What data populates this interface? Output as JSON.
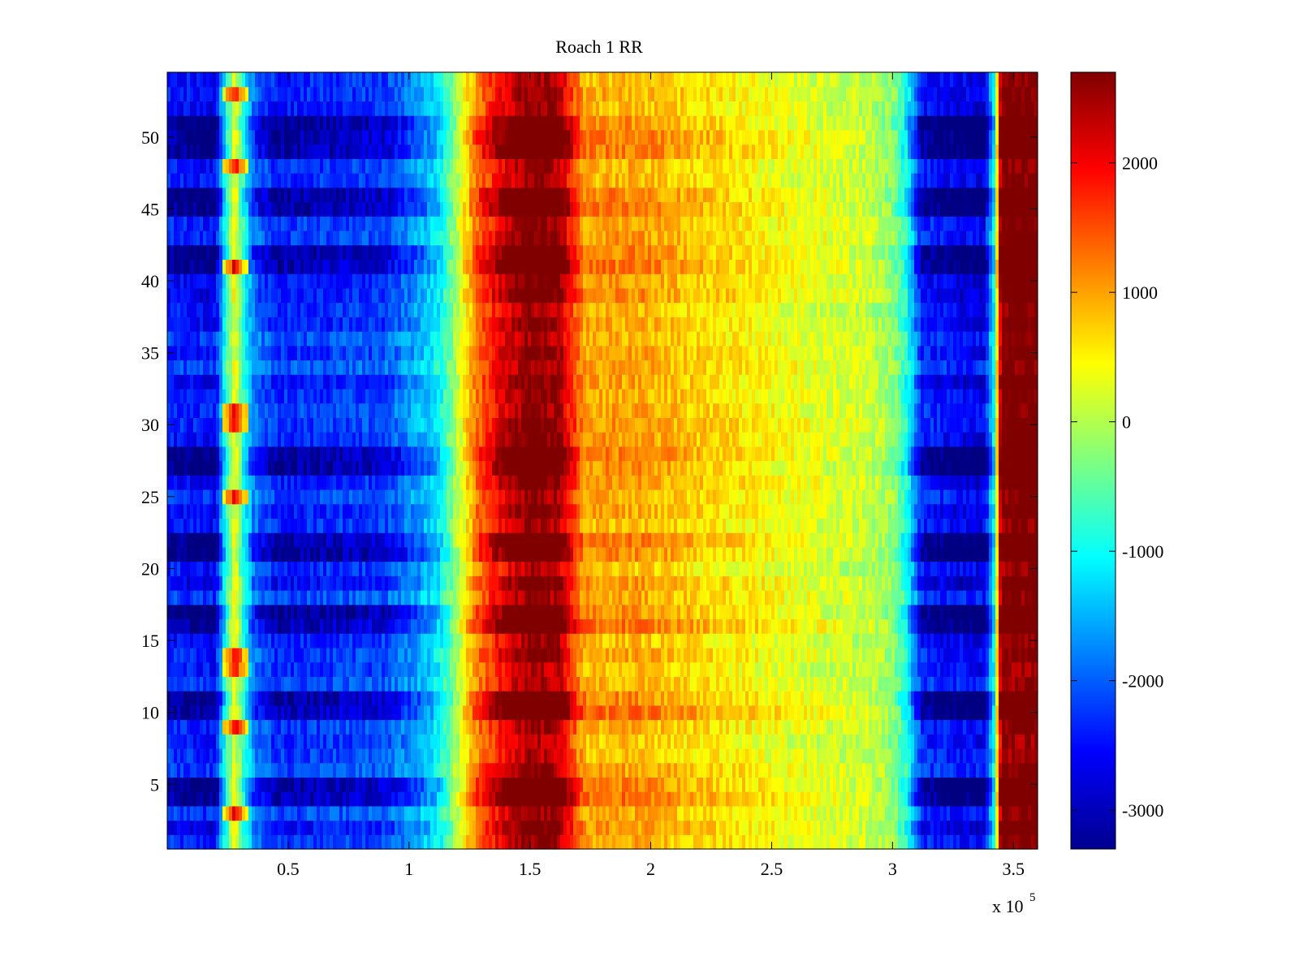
{
  "chart_data": {
    "type": "heatmap",
    "title": "Roach 1 RR",
    "xlabel": "",
    "ylabel": "",
    "x_range": [
      0,
      360000
    ],
    "y_range": [
      0.5,
      54.5
    ],
    "x_ticks": [
      {
        "value": 50000,
        "label": "0.5"
      },
      {
        "value": 100000,
        "label": "1"
      },
      {
        "value": 150000,
        "label": "1.5"
      },
      {
        "value": 200000,
        "label": "2"
      },
      {
        "value": 250000,
        "label": "2.5"
      },
      {
        "value": 300000,
        "label": "3"
      },
      {
        "value": 350000,
        "label": "3.5"
      }
    ],
    "x_multiplier_label": "x 10",
    "x_multiplier_exponent": "5",
    "y_ticks": [
      {
        "value": 5,
        "label": "5"
      },
      {
        "value": 10,
        "label": "10"
      },
      {
        "value": 15,
        "label": "15"
      },
      {
        "value": 20,
        "label": "20"
      },
      {
        "value": 25,
        "label": "25"
      },
      {
        "value": 30,
        "label": "30"
      },
      {
        "value": 35,
        "label": "35"
      },
      {
        "value": 40,
        "label": "40"
      },
      {
        "value": 45,
        "label": "45"
      },
      {
        "value": 50,
        "label": "50"
      }
    ],
    "rows": 54,
    "colorbar": {
      "colormap": "jet",
      "range": [
        -3300,
        2700
      ],
      "ticks": [
        {
          "value": 2000,
          "label": "2000"
        },
        {
          "value": 1000,
          "label": "1000"
        },
        {
          "value": 0,
          "label": "0"
        },
        {
          "value": -1000,
          "label": "-1000"
        },
        {
          "value": -2000,
          "label": "-2000"
        },
        {
          "value": -3000,
          "label": "-3000"
        }
      ]
    },
    "column_profile": [
      {
        "x": 0,
        "value": -2300
      },
      {
        "x": 20000,
        "value": -2500
      },
      {
        "x": 24000,
        "value": -900
      },
      {
        "x": 28000,
        "value": 400
      },
      {
        "x": 32000,
        "value": -900
      },
      {
        "x": 36000,
        "value": -1800
      },
      {
        "x": 45000,
        "value": -2300
      },
      {
        "x": 90000,
        "value": -2100
      },
      {
        "x": 105000,
        "value": -1500
      },
      {
        "x": 113000,
        "value": -1000
      },
      {
        "x": 120000,
        "value": 0
      },
      {
        "x": 128000,
        "value": 1200
      },
      {
        "x": 138000,
        "value": 2000
      },
      {
        "x": 150000,
        "value": 2600
      },
      {
        "x": 162000,
        "value": 2400
      },
      {
        "x": 168000,
        "value": 1500
      },
      {
        "x": 173000,
        "value": 900
      },
      {
        "x": 195000,
        "value": 900
      },
      {
        "x": 225000,
        "value": 600
      },
      {
        "x": 260000,
        "value": 300
      },
      {
        "x": 290000,
        "value": 100
      },
      {
        "x": 300000,
        "value": -200
      },
      {
        "x": 306000,
        "value": -900
      },
      {
        "x": 312000,
        "value": -2300
      },
      {
        "x": 325000,
        "value": -2500
      },
      {
        "x": 338000,
        "value": -2600
      },
      {
        "x": 342000,
        "value": -1000
      },
      {
        "x": 345000,
        "value": 2700
      },
      {
        "x": 360000,
        "value": 2700
      }
    ],
    "strong_rows": [
      4,
      5,
      10,
      11,
      16,
      17,
      21,
      22,
      27,
      28,
      41,
      42,
      45,
      46,
      49,
      50,
      51
    ],
    "hot_spot_rows": [
      3,
      9,
      13,
      14,
      25,
      30,
      31,
      41,
      48,
      53
    ]
  }
}
